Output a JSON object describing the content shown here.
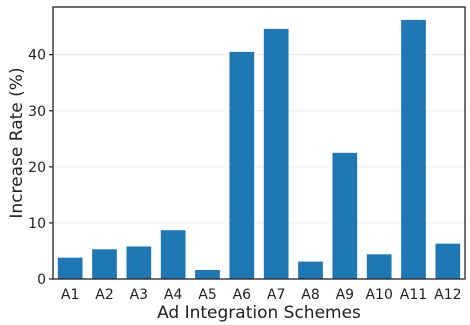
{
  "chart_data": {
    "type": "bar",
    "title": "",
    "xlabel": "Ad Integration Schemes",
    "ylabel": "Increase Rate (%)",
    "categories": [
      "A1",
      "A2",
      "A3",
      "A4",
      "A5",
      "A6",
      "A7",
      "A8",
      "A9",
      "A10",
      "A11",
      "A12"
    ],
    "values": [
      3.8,
      5.3,
      5.8,
      8.7,
      1.6,
      40.5,
      44.6,
      3.1,
      22.5,
      4.4,
      46.2,
      6.3
    ],
    "ylim": [
      0,
      48.5
    ],
    "yticks": [
      0,
      10,
      20,
      30,
      40
    ],
    "ytick_labels": [
      "0",
      "10",
      "20",
      "30",
      "40"
    ],
    "grid": true,
    "legend": "none",
    "colors": {
      "bar": "#1f77b4",
      "grid": "#ececec",
      "axis": "#222222"
    }
  }
}
